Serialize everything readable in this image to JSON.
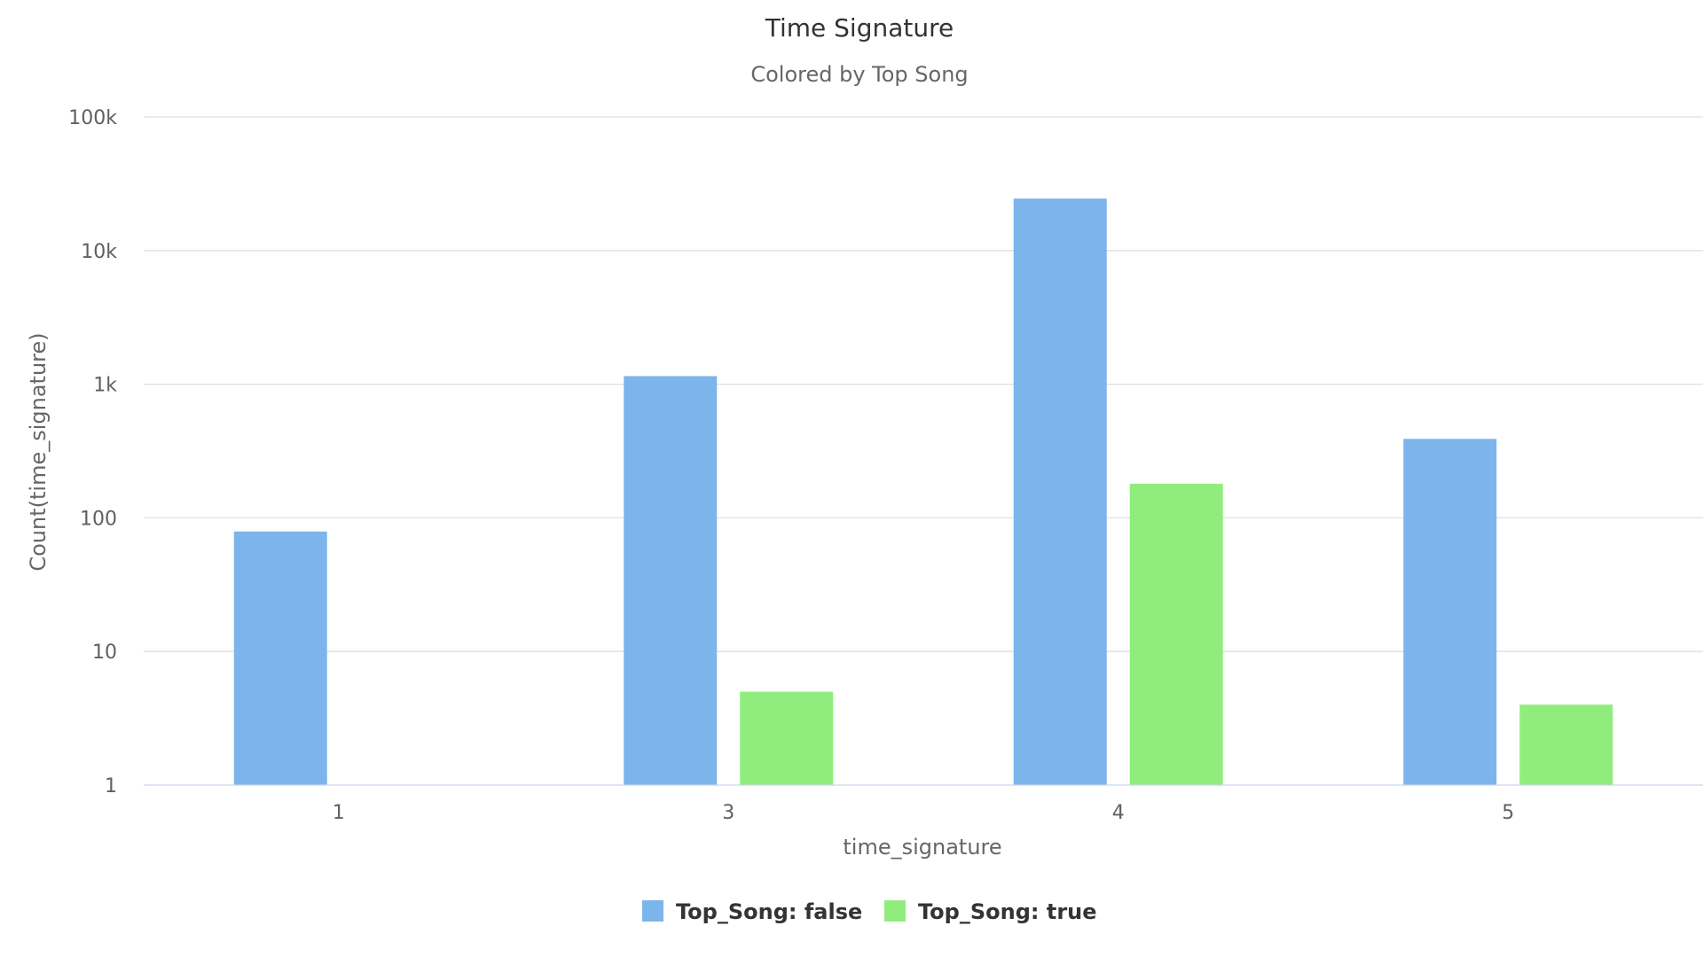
{
  "chart_data": {
    "type": "bar",
    "title": "Time Signature",
    "subtitle": "Colored by Top Song",
    "xlabel": "time_signature",
    "ylabel": "Count(time_signature)",
    "y_scale": "log",
    "ylim": [
      1,
      100000
    ],
    "y_ticks": [
      1,
      10,
      100,
      1000,
      10000,
      100000
    ],
    "y_tick_labels": [
      "1",
      "10",
      "100",
      "1k",
      "10k",
      "100k"
    ],
    "categories": [
      "1",
      "3",
      "4",
      "5"
    ],
    "grid": true,
    "legend_position": "bottom-center",
    "series": [
      {
        "name": "Top_Song: false",
        "color": "#7cb5ec",
        "values": [
          79,
          1150,
          24500,
          390
        ]
      },
      {
        "name": "Top_Song: true",
        "color": "#90ed7d",
        "values": [
          null,
          5,
          180,
          4
        ]
      }
    ]
  }
}
